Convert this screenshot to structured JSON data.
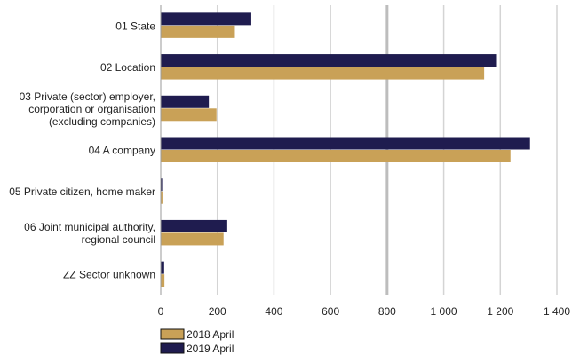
{
  "chart_data": {
    "type": "bar",
    "orientation": "horizontal",
    "categories": [
      [
        "01 State"
      ],
      [
        "02 Location"
      ],
      [
        "03 Private (sector) employer,",
        "corporation or organisation",
        "(excluding companies)"
      ],
      [
        "04 A company"
      ],
      [
        "05 Private citizen, home maker"
      ],
      [
        "06 Joint municipal authority,",
        "regional council"
      ],
      [
        "ZZ Sector unknown"
      ]
    ],
    "series": [
      {
        "name": "2019 April",
        "color": "#1f1c4f",
        "values": [
          320,
          1185,
          170,
          1305,
          5,
          235,
          12
        ]
      },
      {
        "name": "2018 April",
        "color": "#c9a157",
        "values": [
          262,
          1143,
          197,
          1236,
          6,
          222,
          13
        ]
      }
    ],
    "xlim": [
      0,
      1400
    ],
    "ticks": [
      {
        "value": 0,
        "label": "0"
      },
      {
        "value": 200,
        "label": "200"
      },
      {
        "value": 400,
        "label": "400"
      },
      {
        "value": 600,
        "label": "600"
      },
      {
        "value": 800,
        "label": "800"
      },
      {
        "value": 1000,
        "label": "1 000"
      },
      {
        "value": 1200,
        "label": "1 200"
      },
      {
        "value": 1400,
        "label": "1 400"
      }
    ],
    "emphasized_gridline": 800,
    "grid": true,
    "legend_order": [
      "2018 April",
      "2019 April"
    ],
    "legend_position": "bottom-left",
    "title": "",
    "xlabel": "",
    "ylabel": ""
  }
}
